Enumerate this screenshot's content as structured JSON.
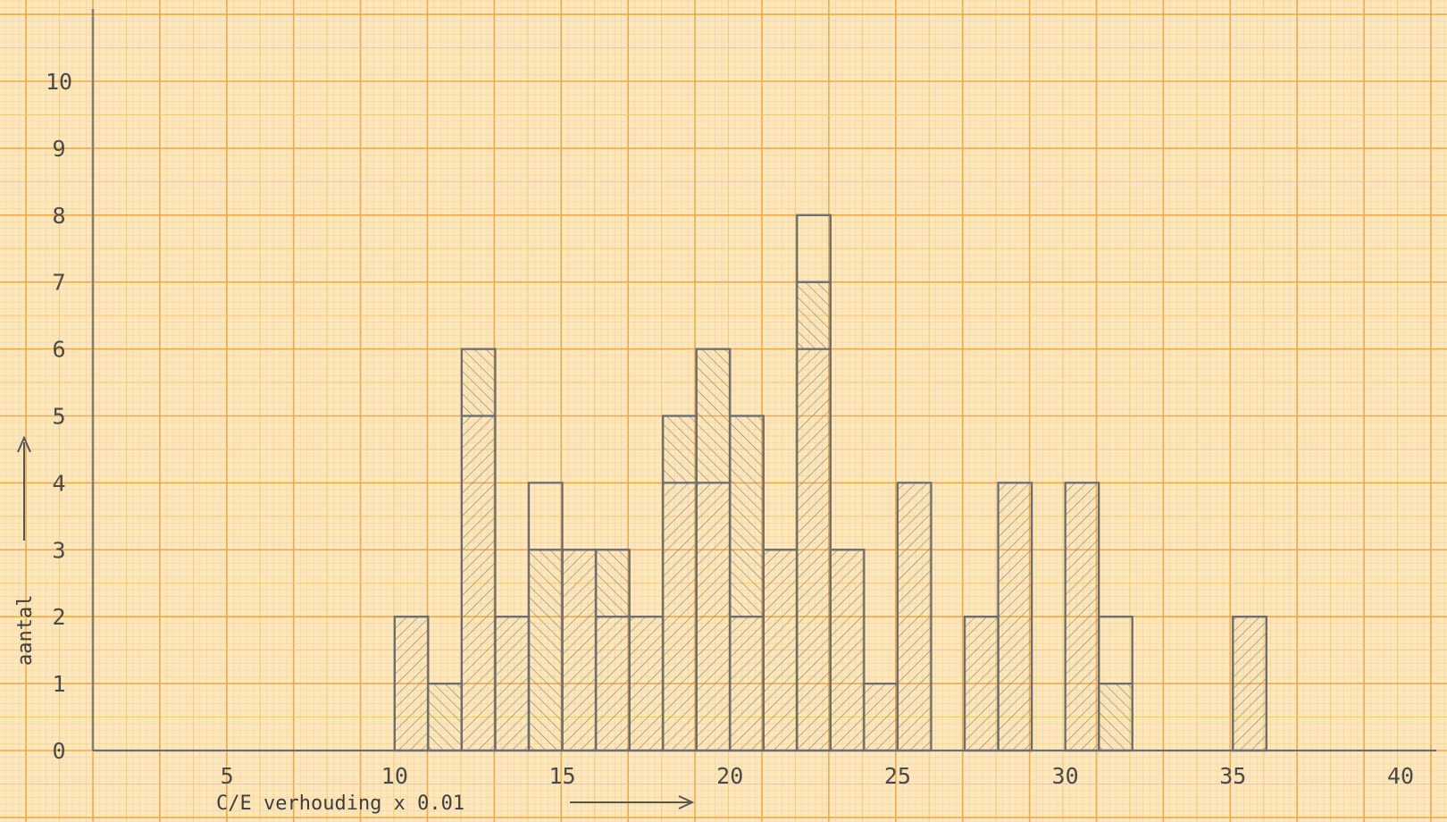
{
  "chart_data": {
    "type": "bar",
    "style": "hand-drawn histogram on orange millimetre graph paper",
    "xlabel": "C/E verhouding x 0.01",
    "ylabel": "aantal",
    "x_ticks": [
      5,
      10,
      15,
      20,
      25,
      30,
      35,
      40
    ],
    "y_ticks": [
      0,
      1,
      2,
      3,
      4,
      5,
      6,
      7,
      8,
      9,
      10
    ],
    "xlim": [
      1,
      40
    ],
    "ylim": [
      0,
      11
    ],
    "bin_width": 1,
    "grid": true,
    "colors": {
      "paper": "#fbe6bd",
      "grid_minor": "#f4c35e",
      "grid_major": "#eea640",
      "ink": "#6e6e6e"
    },
    "bins": [
      {
        "x": 10.5,
        "total": 2,
        "segments": [
          {
            "count": 2,
            "hatch": "forward"
          }
        ]
      },
      {
        "x": 11.5,
        "total": 1,
        "segments": [
          {
            "count": 1,
            "hatch": "back"
          }
        ]
      },
      {
        "x": 12.5,
        "total": 6,
        "segments": [
          {
            "count": 5,
            "hatch": "forward"
          },
          {
            "count": 1,
            "hatch": "back"
          }
        ]
      },
      {
        "x": 13.5,
        "total": 2,
        "segments": [
          {
            "count": 2,
            "hatch": "forward"
          }
        ]
      },
      {
        "x": 14.5,
        "total": 4,
        "segments": [
          {
            "count": 3,
            "hatch": "back"
          },
          {
            "count": 1,
            "hatch": "none"
          }
        ]
      },
      {
        "x": 15.5,
        "total": 3,
        "segments": [
          {
            "count": 3,
            "hatch": "forward"
          }
        ]
      },
      {
        "x": 16.5,
        "total": 3,
        "segments": [
          {
            "count": 2,
            "hatch": "forward"
          },
          {
            "count": 1,
            "hatch": "back"
          }
        ]
      },
      {
        "x": 17.5,
        "total": 2,
        "segments": [
          {
            "count": 2,
            "hatch": "forward"
          }
        ]
      },
      {
        "x": 18.5,
        "total": 5,
        "segments": [
          {
            "count": 4,
            "hatch": "forward"
          },
          {
            "count": 1,
            "hatch": "back"
          }
        ]
      },
      {
        "x": 19.5,
        "total": 6,
        "segments": [
          {
            "count": 4,
            "hatch": "forward"
          },
          {
            "count": 2,
            "hatch": "back"
          }
        ]
      },
      {
        "x": 20.5,
        "total": 5,
        "segments": [
          {
            "count": 2,
            "hatch": "forward"
          },
          {
            "count": 3,
            "hatch": "back"
          }
        ]
      },
      {
        "x": 21.5,
        "total": 3,
        "segments": [
          {
            "count": 3,
            "hatch": "forward"
          }
        ]
      },
      {
        "x": 22.5,
        "total": 8,
        "segments": [
          {
            "count": 6,
            "hatch": "forward"
          },
          {
            "count": 1,
            "hatch": "back"
          },
          {
            "count": 1,
            "hatch": "none"
          }
        ]
      },
      {
        "x": 23.5,
        "total": 3,
        "segments": [
          {
            "count": 3,
            "hatch": "forward"
          }
        ]
      },
      {
        "x": 24.5,
        "total": 1,
        "segments": [
          {
            "count": 1,
            "hatch": "forward"
          }
        ]
      },
      {
        "x": 25.5,
        "total": 4,
        "segments": [
          {
            "count": 4,
            "hatch": "forward"
          }
        ]
      },
      {
        "x": 27.5,
        "total": 2,
        "segments": [
          {
            "count": 2,
            "hatch": "forward"
          }
        ]
      },
      {
        "x": 28.5,
        "total": 4,
        "segments": [
          {
            "count": 4,
            "hatch": "forward"
          }
        ]
      },
      {
        "x": 30.5,
        "total": 4,
        "segments": [
          {
            "count": 4,
            "hatch": "forward"
          }
        ]
      },
      {
        "x": 31.5,
        "total": 2,
        "segments": [
          {
            "count": 1,
            "hatch": "back"
          },
          {
            "count": 1,
            "hatch": "none"
          }
        ]
      },
      {
        "x": 35.5,
        "total": 2,
        "segments": [
          {
            "count": 2,
            "hatch": "forward"
          }
        ]
      }
    ]
  }
}
